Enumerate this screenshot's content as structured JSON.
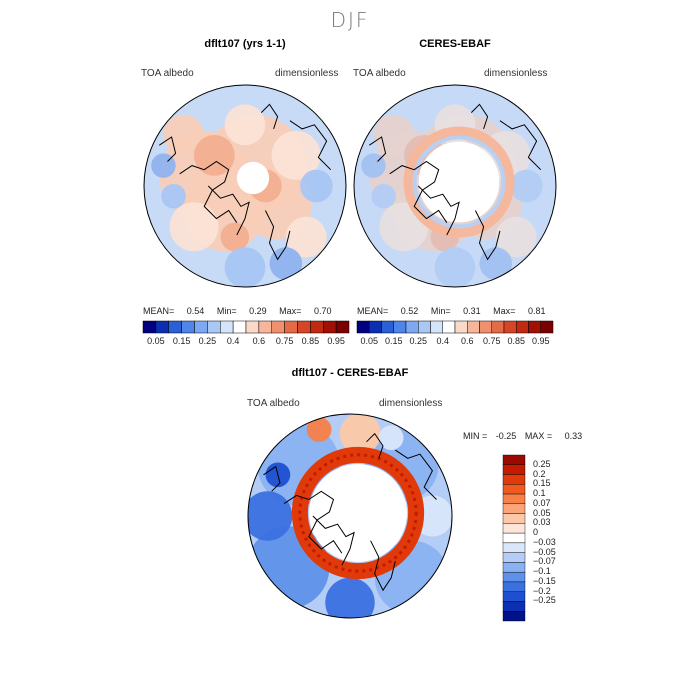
{
  "page": {
    "season": "DJF"
  },
  "chart_data": [
    {
      "type": "heatmap",
      "title": "dflt107 (yrs 1-1)",
      "variable_label": "TOA albedo",
      "units_label": "dimensionless",
      "projection": "north polar stereographic",
      "stats": {
        "mean_label": "MEAN=",
        "mean": "0.54",
        "min_label": "Min=",
        "min": "0.29",
        "max_label": "Max=",
        "max": "0.70"
      },
      "colorbar": {
        "ticks": [
          "0.05",
          "0.15",
          "0.25",
          "0.4",
          "0.6",
          "0.75",
          "0.85",
          "0.95"
        ],
        "colors": [
          "#000080",
          "#0a2fb0",
          "#2a5fd6",
          "#4f84ea",
          "#7ea8f2",
          "#a9c8f6",
          "#d4e4fa",
          "#ffffff",
          "#fbd9c9",
          "#f7b59a",
          "#f0906d",
          "#e56b47",
          "#d54526",
          "#c02a10",
          "#a01005",
          "#7a0000"
        ]
      }
    },
    {
      "type": "heatmap",
      "title": "CERES-EBAF",
      "variable_label": "TOA albedo",
      "units_label": "dimensionless",
      "projection": "north polar stereographic",
      "stats": {
        "mean_label": "MEAN=",
        "mean": "0.52",
        "min_label": "Min=",
        "min": "0.31",
        "max_label": "Max=",
        "max": "0.81"
      },
      "colorbar": {
        "ticks": [
          "0.05",
          "0.15",
          "0.25",
          "0.4",
          "0.6",
          "0.75",
          "0.85",
          "0.95"
        ],
        "colors": [
          "#000080",
          "#0a2fb0",
          "#2a5fd6",
          "#4f84ea",
          "#7ea8f2",
          "#a9c8f6",
          "#d4e4fa",
          "#ffffff",
          "#fbd9c9",
          "#f7b59a",
          "#f0906d",
          "#e56b47",
          "#d54526",
          "#c02a10",
          "#a01005",
          "#7a0000"
        ]
      }
    },
    {
      "type": "heatmap",
      "title": "dflt107 - CERES-EBAF",
      "variable_label": "TOA albedo",
      "units_label": "dimensionless",
      "projection": "north polar stereographic",
      "stats": {
        "min_label": "MIN =",
        "min": "-0.25",
        "max_label": "MAX =",
        "max": "0.33"
      },
      "colorbar": {
        "ticks": [
          "0.25",
          "0.2",
          "0.15",
          "0.1",
          "0.07",
          "0.05",
          "0.03",
          "0",
          "−0.03",
          "−0.05",
          "−0.07",
          "−0.1",
          "−0.15",
          "−0.2",
          "−0.25"
        ],
        "colors": [
          "#9a0a00",
          "#c41a00",
          "#e03a0a",
          "#f05a20",
          "#f78048",
          "#fba478",
          "#fdc8a8",
          "#fbe6d9",
          "#ffffff",
          "#d9e6fb",
          "#b3cdf7",
          "#8ab1f1",
          "#5f91ea",
          "#3a70e0",
          "#1e4fd0",
          "#0a2fb0",
          "#00128a"
        ]
      }
    }
  ]
}
